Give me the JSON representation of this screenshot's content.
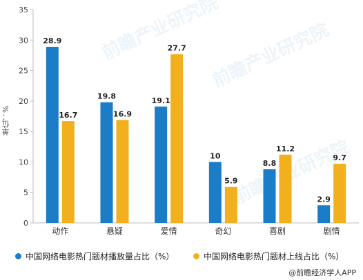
{
  "chart_data": {
    "type": "bar",
    "categories": [
      "动作",
      "悬疑",
      "爱情",
      "奇幻",
      "喜剧",
      "剧情"
    ],
    "series": [
      {
        "name": "中国网络电影热门题材播放量占比（%）",
        "values": [
          28.9,
          19.8,
          19.1,
          10,
          8.8,
          2.9
        ],
        "color": "#1b7cc8"
      },
      {
        "name": "中国网络电影热门题材上线占比（%）",
        "values": [
          16.7,
          16.9,
          27.7,
          5.9,
          11.2,
          9.7
        ],
        "color": "#f2b01e"
      }
    ],
    "value_labels": [
      [
        "28.9",
        "19.8",
        "19.1",
        "10",
        "8.8",
        "2.9"
      ],
      [
        "16.7",
        "16.9",
        "27.7",
        "5.9",
        "11.2",
        "9.7"
      ]
    ],
    "ylabel": "单位：%",
    "ylim": [
      0,
      35
    ],
    "yticks": [
      "0",
      "5",
      "10",
      "15",
      "20",
      "25",
      "30",
      "35"
    ],
    "grid": false,
    "legend_position": "bottom"
  },
  "source": "@前瞻经济学人APP",
  "watermark": "前瞻产业研究院"
}
